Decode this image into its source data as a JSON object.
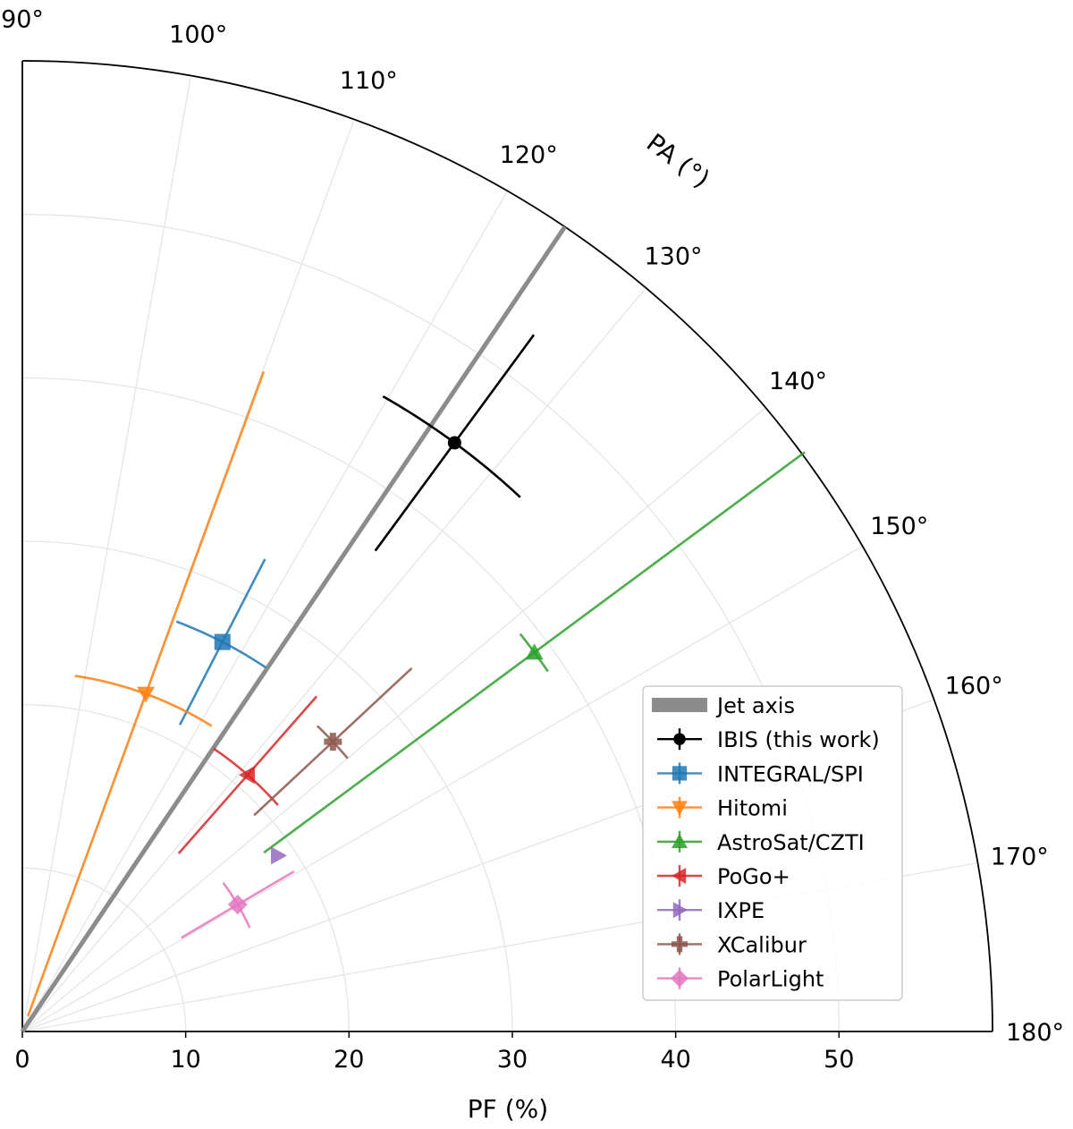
{
  "chart_data": {
    "type": "polar-scatter",
    "title": "",
    "radial_axis": {
      "label": "PF (%)",
      "range": [
        0,
        59.4
      ],
      "ticks": [
        0,
        10,
        20,
        30,
        40,
        50
      ],
      "tick_labels": [
        "0",
        "10",
        "20",
        "30",
        "40",
        "50"
      ]
    },
    "angular_axis": {
      "label": "PA (°)",
      "range": [
        90,
        180
      ],
      "ticks": [
        90,
        100,
        110,
        120,
        130,
        140,
        150,
        160,
        170,
        180
      ],
      "tick_labels": [
        "90°",
        "100°",
        "110°",
        "120°",
        "130°",
        "140°",
        "150°",
        "160°",
        "170°",
        "180°"
      ]
    },
    "grid": true,
    "reference_line": {
      "name": "Jet axis",
      "pa": 124,
      "color": "#8c8c8c"
    },
    "series": [
      {
        "name": "IBIS (this work)",
        "marker": "circle",
        "color": "#000000",
        "pa": 126.3,
        "pf": 44.7,
        "pa_err": 6.7,
        "pf_err": 8.2
      },
      {
        "name": "INTEGRAL/SPI",
        "marker": "square",
        "color": "#1f77b4",
        "pa": 117.2,
        "pf": 26.8,
        "pa_err": 6.6,
        "pf_err": 5.7
      },
      {
        "name": "Hitomi",
        "marker": "triangle-down",
        "color": "#ff7f0e",
        "pa": 110.1,
        "pf": 22.0,
        "pa_err": 11.7,
        "pf_err": 21.0
      },
      {
        "name": "AstroSat/CZTI",
        "marker": "triangle-up",
        "color": "#2ca02c",
        "pa": 143.5,
        "pf": 39.0,
        "pa_err": 2.1,
        "pf_err": 20.6
      },
      {
        "name": "PoGo+",
        "marker": "triangle-left",
        "color": "#d62728",
        "pa": 131.3,
        "pf": 20.9,
        "pa_err": 7.2,
        "pf_err": 6.4
      },
      {
        "name": "IXPE",
        "marker": "triangle-right",
        "color": "#9467bd",
        "pa": 145.5,
        "pf": 19.0,
        "pa_err": 0,
        "pf_err": 0
      },
      {
        "name": "XCalibur",
        "marker": "plus",
        "color": "#8c564b",
        "pa": 137.0,
        "pf": 26.0,
        "pa_err": 3.0,
        "pf_err": 6.6
      },
      {
        "name": "PolarLight",
        "marker": "diamond",
        "color": "#e377c2",
        "pa": 149.5,
        "pf": 15.3,
        "pa_err": 6.0,
        "pf_err": 4.0
      }
    ],
    "legend": {
      "position": "lower-right",
      "entries": [
        "Jet axis",
        "IBIS (this work)",
        "INTEGRAL/SPI",
        "Hitomi",
        "AstroSat/CZTI",
        "PoGo+",
        "IXPE",
        "XCalibur",
        "PolarLight"
      ]
    }
  }
}
